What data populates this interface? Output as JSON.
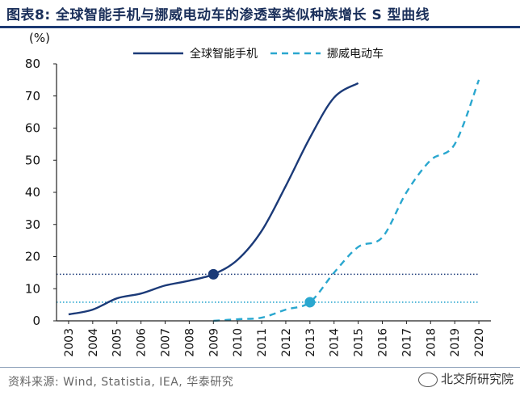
{
  "title": "图表8:   全球智能手机与挪威电动车的渗透率类似种族增长 S 型曲线",
  "source": "资料来源:  Wind, Statistia, IEA, 华泰研究",
  "watermark": "北交所研究院",
  "chart_data": {
    "type": "line",
    "unit": "(%)",
    "x": [
      2003,
      2004,
      2005,
      2006,
      2007,
      2008,
      2009,
      2010,
      2011,
      2012,
      2013,
      2014,
      2015,
      2016,
      2017,
      2018,
      2019,
      2020
    ],
    "xlim": [
      2002.5,
      2020.5
    ],
    "ylim": [
      0,
      80
    ],
    "yticks": [
      0,
      10,
      20,
      30,
      40,
      50,
      60,
      70,
      80
    ],
    "legend_position": "top",
    "series": [
      {
        "name": "全球智能手机",
        "style": "solid",
        "color": "#1b3a78",
        "points": [
          [
            2003,
            2
          ],
          [
            2004,
            3.5
          ],
          [
            2005,
            7
          ],
          [
            2006,
            8.5
          ],
          [
            2007,
            11
          ],
          [
            2008,
            12.5
          ],
          [
            2009,
            14.5
          ],
          [
            2010,
            19
          ],
          [
            2011,
            28
          ],
          [
            2012,
            42
          ],
          [
            2013,
            57
          ],
          [
            2014,
            69.5
          ],
          [
            2015,
            74
          ]
        ]
      },
      {
        "name": "挪威电动车",
        "style": "dashed",
        "color": "#2aa7cf",
        "points": [
          [
            2009,
            0
          ],
          [
            2010,
            0.5
          ],
          [
            2011,
            1
          ],
          [
            2012,
            3.5
          ],
          [
            2013,
            5.8
          ],
          [
            2014,
            15
          ],
          [
            2015,
            23
          ],
          [
            2016,
            26
          ],
          [
            2017,
            40
          ],
          [
            2018,
            50
          ],
          [
            2019,
            55
          ],
          [
            2020,
            75
          ]
        ]
      }
    ],
    "reference_lines": [
      {
        "y": 14.5,
        "color": "#1b3a78"
      },
      {
        "y": 5.8,
        "color": "#2aa7cf"
      }
    ],
    "markers": [
      {
        "x": 2009,
        "y": 14.5,
        "color": "#1b3a78"
      },
      {
        "x": 2013,
        "y": 5.8,
        "color": "#2aa7cf"
      }
    ]
  }
}
